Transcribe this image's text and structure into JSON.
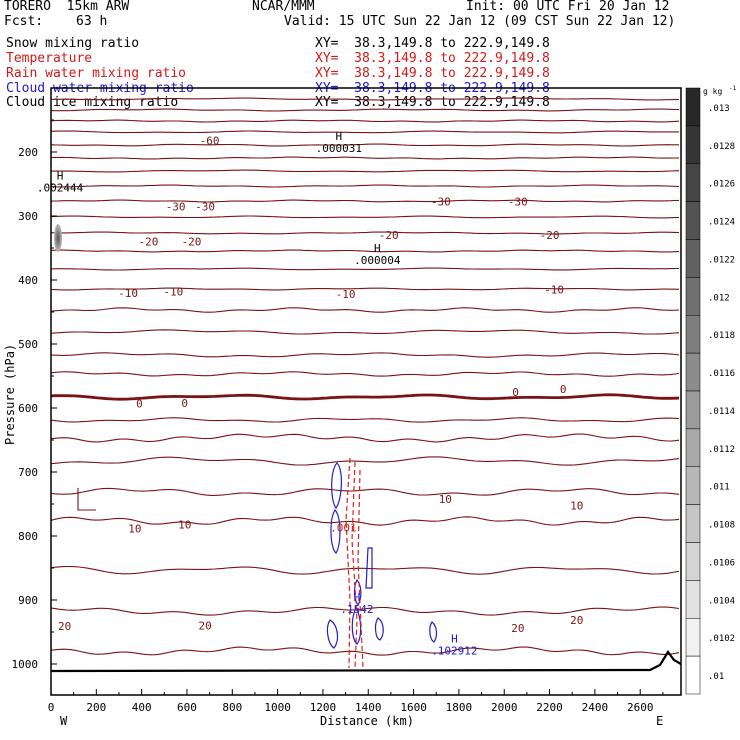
{
  "header": {
    "model": "TORERO  15km ARW",
    "org": "NCAR/MMM",
    "init": "Init: 00 UTC Fri 20 Jan 12",
    "fcst_label": "Fcst:",
    "fcst_value": "63 h",
    "valid": "Valid: 15 UTC Sun 22 Jan 12 (09 CST Sun 22 Jan 12)"
  },
  "legend": [
    {
      "name": "Snow mixing ratio",
      "color": "#000000",
      "xy": "",
      "swatch": true
    },
    {
      "name": "Temperature",
      "color": "#d41a1a",
      "xy": "XY=  38.3,149.8 to 222.9,149.8",
      "swatch": false
    },
    {
      "name": "Rain water mixing ratio",
      "color": "#d41a1a",
      "xy": "XY=  38.3,149.8 to 222.9,149.8",
      "swatch": false
    },
    {
      "name": "Cloud water mixing ratio",
      "color": "#1a1ad4",
      "xy": "XY=  38.3,149.8 to 222.9,149.8",
      "swatch": false
    },
    {
      "name": "Cloud ice mixing ratio",
      "color": "#000000",
      "xy": "XY=  38.3,149.8 to 222.9,149.8",
      "swatch": false
    }
  ],
  "snow_xy": "XY=  38.3,149.8 to 222.9,149.8",
  "colors": {
    "temp": "#7a1414",
    "rain": "#e02020",
    "cloud": "#2020c8",
    "terrain": "#000000"
  },
  "chart_data": {
    "type": "cross-section contour",
    "xlabel": "Distance (km)",
    "ylabel": "Pressure (hPa)",
    "xlim": [
      0,
      2780
    ],
    "ylim": [
      1030,
      100
    ],
    "x_ticks": [
      0,
      200,
      400,
      600,
      800,
      1000,
      1200,
      1400,
      1600,
      1800,
      2000,
      2200,
      2400,
      2600
    ],
    "y_ticks": [
      200,
      300,
      400,
      500,
      600,
      700,
      800,
      900,
      1000
    ],
    "x_end_left": "W",
    "x_end_right": "E",
    "colorbar": {
      "unit": "g kg",
      "unit_exp": "-1",
      "labels": [
        ".013",
        ".0128",
        ".0126",
        ".0124",
        ".0122",
        ".012",
        ".0118",
        ".0116",
        ".0114",
        ".0112",
        ".011",
        ".0108",
        ".0106",
        ".0104",
        ".0102",
        ".01"
      ]
    },
    "temperature_contour_labels": [
      {
        "text": "-60",
        "x": 700,
        "p": 182
      },
      {
        "text": "-30",
        "x": 550,
        "p": 285
      },
      {
        "text": "-30",
        "x": 680,
        "p": 285
      },
      {
        "text": "-30",
        "x": 1720,
        "p": 277
      },
      {
        "text": "-30",
        "x": 2060,
        "p": 277
      },
      {
        "text": "-20",
        "x": 430,
        "p": 340
      },
      {
        "text": "-20",
        "x": 620,
        "p": 340
      },
      {
        "text": "-20",
        "x": 1490,
        "p": 330
      },
      {
        "text": "-20",
        "x": 2200,
        "p": 330
      },
      {
        "text": "-10",
        "x": 340,
        "p": 420
      },
      {
        "text": "-10",
        "x": 540,
        "p": 418
      },
      {
        "text": "-10",
        "x": 1300,
        "p": 422
      },
      {
        "text": "-10",
        "x": 2220,
        "p": 415
      },
      {
        "text": "0",
        "x": 390,
        "p": 593
      },
      {
        "text": "0",
        "x": 590,
        "p": 592
      },
      {
        "text": "0",
        "x": 2050,
        "p": 575
      },
      {
        "text": "0",
        "x": 2260,
        "p": 570
      },
      {
        "text": "10",
        "x": 370,
        "p": 788
      },
      {
        "text": "10",
        "x": 590,
        "p": 782
      },
      {
        "text": "10",
        "x": 1740,
        "p": 742
      },
      {
        "text": "10",
        "x": 2320,
        "p": 752
      },
      {
        "text": "20",
        "x": 60,
        "p": 941
      },
      {
        "text": "20",
        "x": 680,
        "p": 940
      },
      {
        "text": "20",
        "x": 2060,
        "p": 944
      },
      {
        "text": "20",
        "x": 2320,
        "p": 931
      }
    ],
    "max_markers": [
      {
        "label": "H",
        "value": ".002444",
        "x": 40,
        "p": 262,
        "color": "#000000"
      },
      {
        "label": "H",
        "value": ".000031",
        "x": 1270,
        "p": 200,
        "color": "#000000"
      },
      {
        "label": "H",
        "value": ".000004",
        "x": 1440,
        "p": 375,
        "color": "#000000"
      },
      {
        "label": "",
        "value": ".001",
        "x": 1290,
        "p": 793,
        "color": "#d41a1a"
      },
      {
        "label": "H",
        "value": ".1542",
        "x": 1350,
        "p": 920,
        "color": "#1a1ad4"
      },
      {
        "label": "H",
        "value": ".102912",
        "x": 1780,
        "p": 985,
        "color": "#1a1ad4"
      }
    ]
  }
}
